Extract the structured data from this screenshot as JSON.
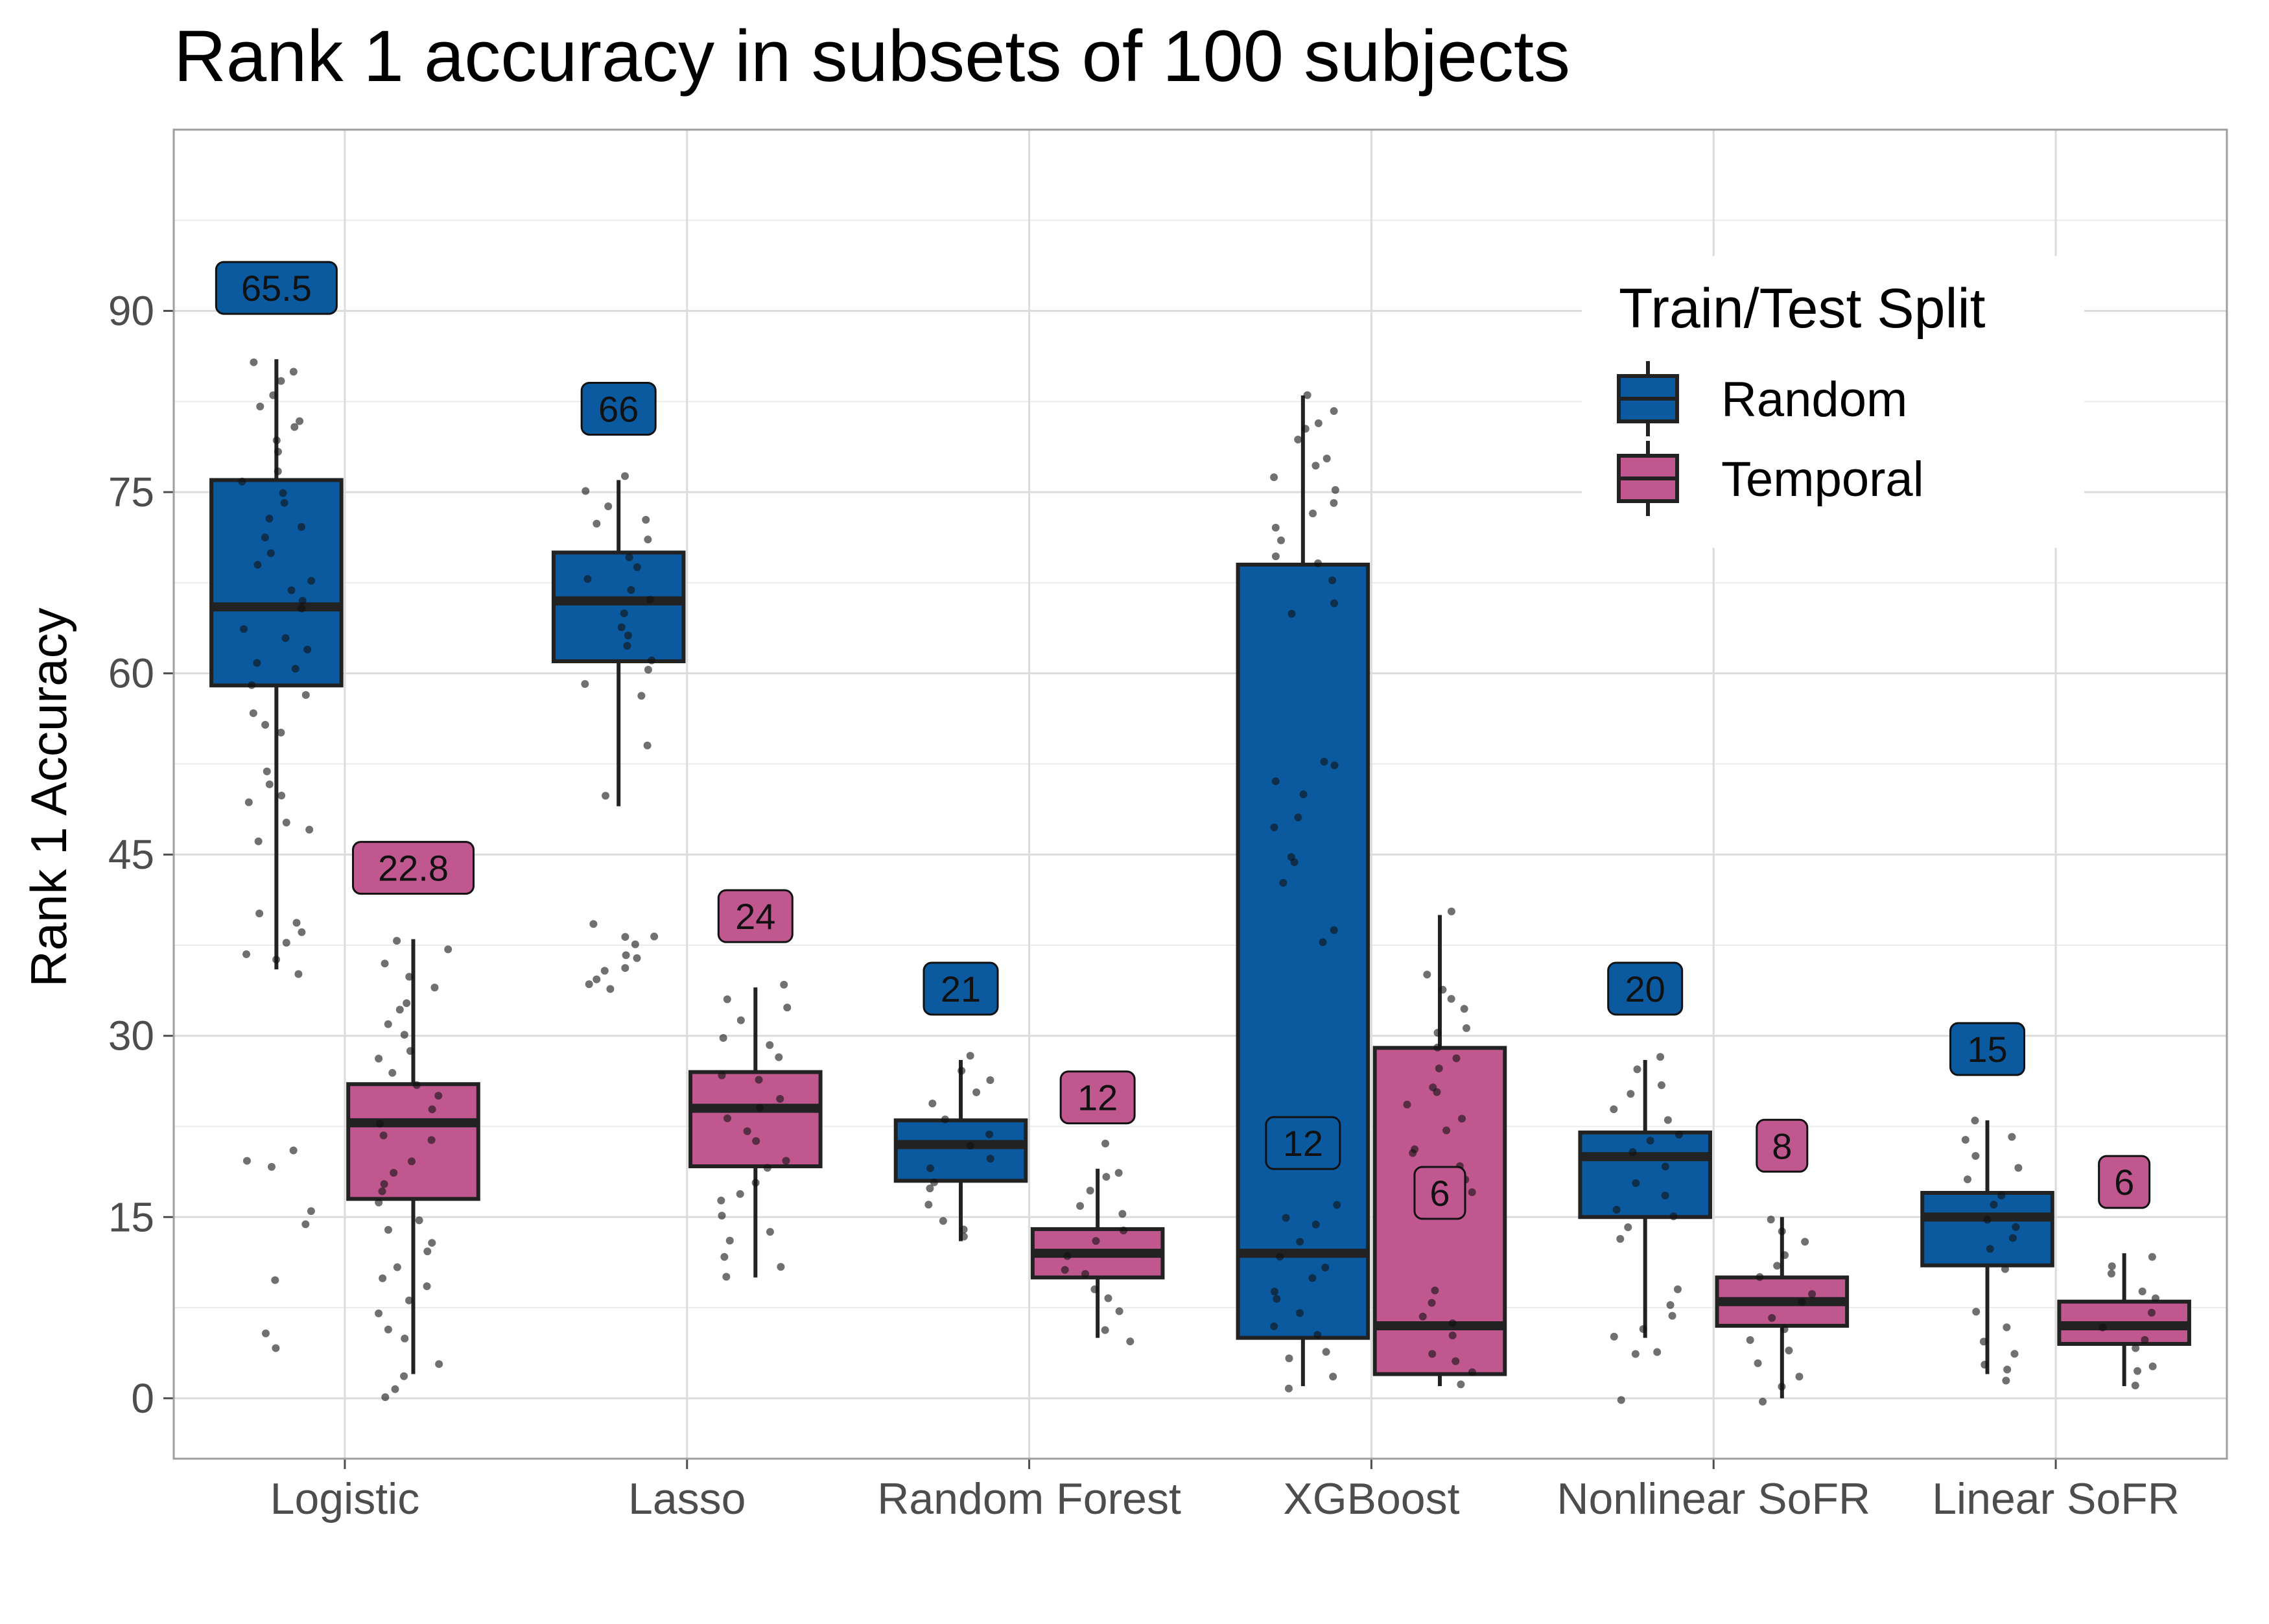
{
  "chart_data": {
    "type": "box",
    "title": "Rank 1 accuracy in subsets of 100 subjects",
    "xlabel": "",
    "ylabel": "Rank 1 Accuracy",
    "ylim": [
      -5,
      105
    ],
    "yticks": [
      0,
      15,
      30,
      45,
      60,
      75,
      90
    ],
    "grid": true,
    "categories": [
      "Logistic",
      "Lasso",
      "Random Forest",
      "XGBoost",
      "Nonlinear SoFR",
      "Linear SoFR"
    ],
    "legend": {
      "title": "Train/Test Split",
      "position": "top-right",
      "entries": [
        "Random",
        "Temporal"
      ]
    },
    "series": [
      {
        "name": "Random",
        "color": "#0b5aa0",
        "boxes": [
          {
            "category": "Logistic",
            "median": 65.5,
            "q1": 59,
            "q3": 76,
            "whisker_low": 35.5,
            "whisker_high": 86,
            "label": "65.5",
            "points": [
              86,
              85,
              84,
              83,
              82,
              81,
              80,
              79,
              78,
              77,
              76,
              75,
              74,
              73,
              72,
              71,
              70,
              69,
              68,
              67,
              66,
              65,
              64,
              63,
              62,
              61,
              60,
              59,
              58,
              57,
              56,
              55,
              52,
              51,
              50,
              49,
              48,
              47,
              46,
              40.5,
              39.5,
              38.5,
              37.5,
              37,
              36,
              35.5,
              20.5,
              20,
              19.5,
              15.5,
              14.5,
              10,
              5.5,
              4.5
            ]
          },
          {
            "category": "Lasso",
            "median": 66,
            "q1": 61,
            "q3": 70,
            "whisker_low": 49,
            "whisker_high": 76,
            "label": "66",
            "points": [
              76,
              75,
              74,
              73,
              72,
              71,
              70,
              69,
              68,
              67,
              66,
              65,
              64,
              63,
              62,
              61,
              60,
              59,
              58,
              54,
              49.5,
              39,
              38.5,
              38,
              37.5,
              37,
              36.5,
              36,
              35.5,
              35,
              34.5,
              34
            ]
          },
          {
            "category": "Random Forest",
            "median": 21,
            "q1": 18,
            "q3": 23,
            "whisker_low": 13,
            "whisker_high": 28,
            "label": "21",
            "points": [
              28,
              27,
              26,
              25,
              24,
              23,
              22,
              21,
              20,
              19,
              18,
              17,
              16,
              15,
              14,
              13
            ]
          },
          {
            "category": "XGBoost",
            "median": 12,
            "q1": 5,
            "q3": 69,
            "whisker_low": 1,
            "whisker_high": 83,
            "label": "12",
            "points": [
              83,
              82,
              81,
              80,
              79,
              78,
              77,
              76,
              75,
              74,
              73,
              72,
              71,
              70,
              69,
              68,
              66,
              65,
              53,
              52,
              51,
              50,
              48,
              47,
              45,
              44,
              43,
              39,
              38,
              16,
              15,
              14,
              13,
              12,
              11,
              10,
              9,
              8,
              7,
              6,
              5,
              4,
              3,
              2,
              1
            ]
          },
          {
            "category": "Nonlinear SoFR",
            "median": 20,
            "q1": 15,
            "q3": 22,
            "whisker_low": 5,
            "whisker_high": 28,
            "label": "20",
            "points": [
              28,
              27,
              26,
              25,
              24,
              23,
              22,
              21,
              20,
              19,
              18,
              17,
              16,
              15,
              14,
              13,
              9,
              8,
              7,
              6,
              5,
              4,
              3.5,
              0
            ]
          },
          {
            "category": "Linear SoFR",
            "median": 15,
            "q1": 11,
            "q3": 17,
            "whisker_low": 2,
            "whisker_high": 23,
            "label": "15",
            "points": [
              23,
              22,
              21,
              20,
              19,
              18,
              17,
              16,
              15,
              14,
              13,
              12,
              11,
              7,
              6,
              5,
              4,
              3,
              2,
              1.5
            ]
          }
        ]
      },
      {
        "name": "Temporal",
        "color": "#c0578f",
        "boxes": [
          {
            "category": "Logistic",
            "median": 22.8,
            "q1": 16.5,
            "q3": 26,
            "whisker_low": 2,
            "whisker_high": 38,
            "label": "22.8",
            "points": [
              38,
              37,
              36,
              35,
              34,
              33,
              32,
              31,
              30,
              29,
              28,
              27,
              26,
              25,
              24,
              23,
              22,
              21,
              20,
              19,
              18,
              17,
              16,
              15,
              14,
              13,
              12,
              11,
              10,
              9,
              8,
              7,
              6,
              5,
              2.5,
              2,
              0.5,
              0
            ]
          },
          {
            "category": "Lasso",
            "median": 24,
            "q1": 19.2,
            "q3": 27,
            "whisker_low": 10,
            "whisker_high": 34,
            "label": "24",
            "points": [
              34,
              33,
              32,
              31,
              30,
              29,
              28,
              27,
              26,
              25,
              24,
              23,
              22,
              21,
              20,
              19,
              18,
              17,
              16,
              15,
              14,
              13,
              12,
              11,
              10
            ]
          },
          {
            "category": "Random Forest",
            "median": 12,
            "q1": 10,
            "q3": 14,
            "whisker_low": 5,
            "whisker_high": 19,
            "label": "12",
            "points": [
              21,
              19,
              18,
              17,
              16,
              15,
              14,
              13,
              12,
              11,
              10,
              9,
              8,
              7,
              6,
              5
            ]
          },
          {
            "category": "XGBoost",
            "median": 6,
            "q1": 2,
            "q3": 29,
            "whisker_low": 1,
            "whisker_high": 40,
            "label": "6",
            "points": [
              40,
              35,
              34,
              33,
              32,
              31,
              30,
              29,
              28,
              27,
              26,
              25,
              24,
              23,
              22,
              21,
              20,
              19,
              18,
              17,
              16,
              9,
              8,
              7,
              6,
              5,
              4,
              3,
              2,
              1
            ]
          },
          {
            "category": "Nonlinear SoFR",
            "median": 8,
            "q1": 6,
            "q3": 10,
            "whisker_low": 0,
            "whisker_high": 15,
            "label": "8",
            "points": [
              15,
              14,
              13,
              12,
              11,
              10,
              9,
              8,
              7,
              6,
              5,
              4,
              3,
              2,
              1,
              0
            ]
          },
          {
            "category": "Linear SoFR",
            "median": 6,
            "q1": 4.5,
            "q3": 8,
            "whisker_low": 1,
            "whisker_high": 12,
            "label": "6",
            "points": [
              12,
              11,
              10,
              9,
              8,
              7,
              6,
              5,
              4,
              3,
              2,
              1
            ]
          }
        ]
      }
    ]
  }
}
